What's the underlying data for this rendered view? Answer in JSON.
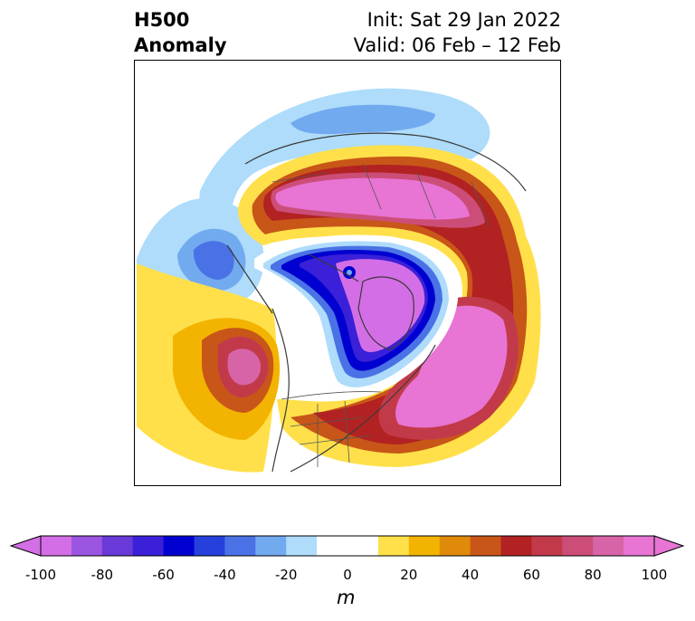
{
  "title": {
    "left_line1": "H500",
    "left_line2": "Anomaly",
    "init": "Init: Sat 29 Jan 2022",
    "valid": "Valid: 06 Feb – 12 Feb"
  },
  "colorbar": {
    "unit": "m",
    "ticks": [
      "-100",
      "-80",
      "-60",
      "-40",
      "-20",
      "0",
      "20",
      "40",
      "60",
      "80",
      "100"
    ],
    "colors": [
      "#d46ee6",
      "#9b55e0",
      "#6a3ad8",
      "#3a20d8",
      "#0000d0",
      "#2540dd",
      "#4a72e6",
      "#72aaf0",
      "#aedcfa",
      "#ffffff",
      "#ffffff",
      "#ffe04a",
      "#f2b400",
      "#e08a0a",
      "#c85618",
      "#b22222",
      "#c23a4a",
      "#cc4e78",
      "#d864a8",
      "#e874d4"
    ]
  }
}
